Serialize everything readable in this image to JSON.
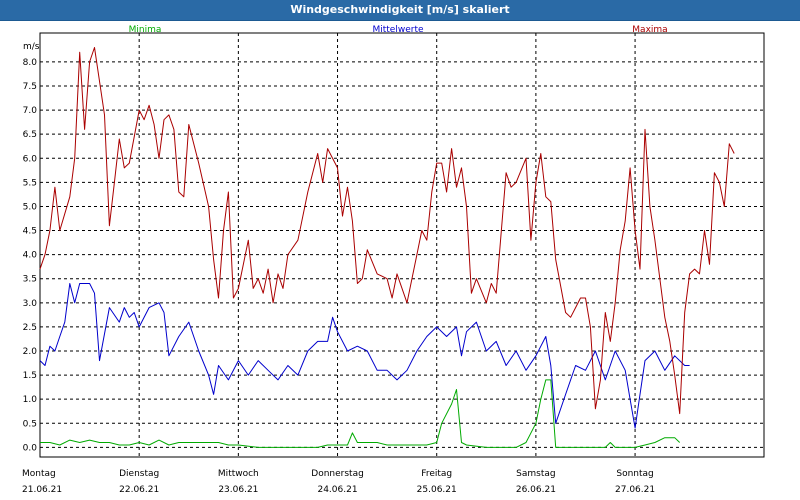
{
  "window": {
    "title": "Windgeschwindigkeit [m/s] skaliert"
  },
  "chart_data": {
    "type": "line",
    "title": "Windgeschwindigkeit [m/s] skaliert",
    "ylabel": "m/s",
    "ylim": [
      -0.2,
      8.6
    ],
    "xlim": [
      0,
      7.3
    ],
    "y_ticks": [
      "0.0",
      "0.5",
      "1.0",
      "1.5",
      "2.0",
      "2.5",
      "3.0",
      "3.5",
      "4.0",
      "4.5",
      "5.0",
      "5.5",
      "6.0",
      "6.5",
      "7.0",
      "7.5",
      "8.0"
    ],
    "x_ticks": [
      {
        "day": "Montag",
        "date": "21.06.21",
        "x": 0
      },
      {
        "day": "Dienstag",
        "date": "22.06.21",
        "x": 1
      },
      {
        "day": "Mittwoch",
        "date": "23.06.21",
        "x": 2
      },
      {
        "day": "Donnerstag",
        "date": "24.06.21",
        "x": 3
      },
      {
        "day": "Freitag",
        "date": "25.06.21",
        "x": 4
      },
      {
        "day": "Samstag",
        "date": "26.06.21",
        "x": 5
      },
      {
        "day": "Sonntag",
        "date": "27.06.21",
        "x": 6
      }
    ],
    "grid": true,
    "series": [
      {
        "name": "Minima",
        "color": "#00aa00",
        "points": [
          [
            0,
            0.1
          ],
          [
            0.1,
            0.1
          ],
          [
            0.2,
            0.05
          ],
          [
            0.3,
            0.15
          ],
          [
            0.4,
            0.1
          ],
          [
            0.5,
            0.15
          ],
          [
            0.6,
            0.1
          ],
          [
            0.7,
            0.1
          ],
          [
            0.8,
            0.05
          ],
          [
            0.9,
            0.05
          ],
          [
            1.0,
            0.1
          ],
          [
            1.1,
            0.05
          ],
          [
            1.2,
            0.15
          ],
          [
            1.3,
            0.05
          ],
          [
            1.4,
            0.1
          ],
          [
            1.6,
            0.1
          ],
          [
            1.8,
            0.1
          ],
          [
            1.9,
            0.05
          ],
          [
            2.0,
            0.05
          ],
          [
            2.2,
            0.0
          ],
          [
            2.5,
            0.0
          ],
          [
            2.8,
            0.0
          ],
          [
            2.9,
            0.05
          ],
          [
            3.1,
            0.05
          ],
          [
            3.15,
            0.3
          ],
          [
            3.2,
            0.1
          ],
          [
            3.4,
            0.1
          ],
          [
            3.5,
            0.05
          ],
          [
            3.9,
            0.05
          ],
          [
            4.0,
            0.1
          ],
          [
            4.05,
            0.5
          ],
          [
            4.15,
            0.9
          ],
          [
            4.2,
            1.2
          ],
          [
            4.25,
            0.1
          ],
          [
            4.3,
            0.05
          ],
          [
            4.5,
            0.0
          ],
          [
            4.8,
            0.0
          ],
          [
            4.9,
            0.1
          ],
          [
            5.0,
            0.5
          ],
          [
            5.05,
            1.0
          ],
          [
            5.1,
            1.4
          ],
          [
            5.15,
            1.4
          ],
          [
            5.2,
            0.0
          ],
          [
            5.5,
            0.0
          ],
          [
            5.7,
            0.0
          ],
          [
            5.75,
            0.1
          ],
          [
            5.8,
            0.0
          ],
          [
            6.0,
            0.0
          ],
          [
            6.1,
            0.05
          ],
          [
            6.2,
            0.1
          ],
          [
            6.3,
            0.2
          ],
          [
            6.4,
            0.2
          ],
          [
            6.45,
            0.1
          ]
        ]
      },
      {
        "name": "Mittelwerte",
        "color": "#0000cc",
        "points": [
          [
            0,
            1.8
          ],
          [
            0.05,
            1.7
          ],
          [
            0.1,
            2.1
          ],
          [
            0.15,
            2.0
          ],
          [
            0.2,
            2.3
          ],
          [
            0.25,
            2.6
          ],
          [
            0.3,
            3.4
          ],
          [
            0.35,
            3.0
          ],
          [
            0.4,
            3.4
          ],
          [
            0.5,
            3.4
          ],
          [
            0.55,
            3.2
          ],
          [
            0.6,
            1.8
          ],
          [
            0.7,
            2.9
          ],
          [
            0.8,
            2.6
          ],
          [
            0.85,
            2.9
          ],
          [
            0.9,
            2.7
          ],
          [
            0.95,
            2.8
          ],
          [
            1.0,
            2.5
          ],
          [
            1.1,
            2.9
          ],
          [
            1.2,
            3.0
          ],
          [
            1.25,
            2.8
          ],
          [
            1.3,
            1.9
          ],
          [
            1.4,
            2.3
          ],
          [
            1.5,
            2.6
          ],
          [
            1.6,
            2.0
          ],
          [
            1.7,
            1.5
          ],
          [
            1.75,
            1.1
          ],
          [
            1.8,
            1.7
          ],
          [
            1.9,
            1.4
          ],
          [
            2.0,
            1.8
          ],
          [
            2.1,
            1.5
          ],
          [
            2.2,
            1.8
          ],
          [
            2.3,
            1.6
          ],
          [
            2.4,
            1.4
          ],
          [
            2.5,
            1.7
          ],
          [
            2.6,
            1.5
          ],
          [
            2.7,
            2.0
          ],
          [
            2.8,
            2.2
          ],
          [
            2.9,
            2.2
          ],
          [
            2.95,
            2.7
          ],
          [
            3.0,
            2.4
          ],
          [
            3.1,
            2.0
          ],
          [
            3.2,
            2.1
          ],
          [
            3.3,
            2.0
          ],
          [
            3.4,
            1.6
          ],
          [
            3.5,
            1.6
          ],
          [
            3.6,
            1.4
          ],
          [
            3.7,
            1.6
          ],
          [
            3.8,
            2.0
          ],
          [
            3.9,
            2.3
          ],
          [
            4.0,
            2.5
          ],
          [
            4.1,
            2.3
          ],
          [
            4.2,
            2.5
          ],
          [
            4.25,
            1.9
          ],
          [
            4.3,
            2.4
          ],
          [
            4.4,
            2.6
          ],
          [
            4.5,
            2.0
          ],
          [
            4.6,
            2.2
          ],
          [
            4.7,
            1.7
          ],
          [
            4.8,
            2.0
          ],
          [
            4.9,
            1.6
          ],
          [
            5.0,
            1.9
          ],
          [
            5.1,
            2.3
          ],
          [
            5.15,
            1.7
          ],
          [
            5.2,
            0.5
          ],
          [
            5.3,
            1.1
          ],
          [
            5.4,
            1.7
          ],
          [
            5.5,
            1.6
          ],
          [
            5.6,
            2.0
          ],
          [
            5.7,
            1.4
          ],
          [
            5.8,
            2.0
          ],
          [
            5.9,
            1.6
          ],
          [
            5.95,
            1.0
          ],
          [
            6.0,
            0.4
          ],
          [
            6.05,
            1.1
          ],
          [
            6.1,
            1.8
          ],
          [
            6.2,
            2.0
          ],
          [
            6.3,
            1.6
          ],
          [
            6.4,
            1.9
          ],
          [
            6.5,
            1.7
          ],
          [
            6.55,
            1.7
          ]
        ]
      },
      {
        "name": "Maxima",
        "color": "#aa0000",
        "points": [
          [
            0,
            3.7
          ],
          [
            0.05,
            4.0
          ],
          [
            0.1,
            4.5
          ],
          [
            0.15,
            5.4
          ],
          [
            0.2,
            4.5
          ],
          [
            0.3,
            5.2
          ],
          [
            0.35,
            6.0
          ],
          [
            0.4,
            8.2
          ],
          [
            0.45,
            6.6
          ],
          [
            0.5,
            8.0
          ],
          [
            0.55,
            8.3
          ],
          [
            0.6,
            7.6
          ],
          [
            0.65,
            6.9
          ],
          [
            0.7,
            4.6
          ],
          [
            0.75,
            5.5
          ],
          [
            0.8,
            6.4
          ],
          [
            0.85,
            5.8
          ],
          [
            0.9,
            5.9
          ],
          [
            1.0,
            7.0
          ],
          [
            1.05,
            6.8
          ],
          [
            1.1,
            7.1
          ],
          [
            1.15,
            6.7
          ],
          [
            1.2,
            6.0
          ],
          [
            1.25,
            6.8
          ],
          [
            1.3,
            6.9
          ],
          [
            1.35,
            6.6
          ],
          [
            1.4,
            5.3
          ],
          [
            1.45,
            5.2
          ],
          [
            1.5,
            6.7
          ],
          [
            1.6,
            5.9
          ],
          [
            1.7,
            5.0
          ],
          [
            1.75,
            3.9
          ],
          [
            1.8,
            3.1
          ],
          [
            1.85,
            4.5
          ],
          [
            1.9,
            5.3
          ],
          [
            1.95,
            3.1
          ],
          [
            2.0,
            3.3
          ],
          [
            2.1,
            4.3
          ],
          [
            2.15,
            3.3
          ],
          [
            2.2,
            3.5
          ],
          [
            2.25,
            3.2
          ],
          [
            2.3,
            3.7
          ],
          [
            2.35,
            3.0
          ],
          [
            2.4,
            3.6
          ],
          [
            2.45,
            3.3
          ],
          [
            2.5,
            4.0
          ],
          [
            2.6,
            4.3
          ],
          [
            2.7,
            5.3
          ],
          [
            2.8,
            6.1
          ],
          [
            2.85,
            5.5
          ],
          [
            2.9,
            6.2
          ],
          [
            3.0,
            5.8
          ],
          [
            3.05,
            4.8
          ],
          [
            3.1,
            5.4
          ],
          [
            3.15,
            4.7
          ],
          [
            3.2,
            3.4
          ],
          [
            3.25,
            3.5
          ],
          [
            3.3,
            4.1
          ],
          [
            3.4,
            3.6
          ],
          [
            3.5,
            3.5
          ],
          [
            3.55,
            3.1
          ],
          [
            3.6,
            3.6
          ],
          [
            3.7,
            3.0
          ],
          [
            3.8,
            4.0
          ],
          [
            3.85,
            4.5
          ],
          [
            3.9,
            4.3
          ],
          [
            3.95,
            5.3
          ],
          [
            4.0,
            5.9
          ],
          [
            4.05,
            5.9
          ],
          [
            4.1,
            5.3
          ],
          [
            4.15,
            6.2
          ],
          [
            4.2,
            5.4
          ],
          [
            4.25,
            5.8
          ],
          [
            4.3,
            5.0
          ],
          [
            4.35,
            3.2
          ],
          [
            4.4,
            3.5
          ],
          [
            4.5,
            3.0
          ],
          [
            4.55,
            3.4
          ],
          [
            4.6,
            3.2
          ],
          [
            4.7,
            5.7
          ],
          [
            4.75,
            5.4
          ],
          [
            4.8,
            5.5
          ],
          [
            4.9,
            6.0
          ],
          [
            4.95,
            4.3
          ],
          [
            5.0,
            5.5
          ],
          [
            5.05,
            6.1
          ],
          [
            5.1,
            5.2
          ],
          [
            5.15,
            5.1
          ],
          [
            5.2,
            3.9
          ],
          [
            5.3,
            2.8
          ],
          [
            5.35,
            2.7
          ],
          [
            5.4,
            2.9
          ],
          [
            5.45,
            3.1
          ],
          [
            5.5,
            3.1
          ],
          [
            5.55,
            2.5
          ],
          [
            5.6,
            0.8
          ],
          [
            5.65,
            1.4
          ],
          [
            5.7,
            2.8
          ],
          [
            5.75,
            2.2
          ],
          [
            5.8,
            3.0
          ],
          [
            5.85,
            4.1
          ],
          [
            5.9,
            4.7
          ],
          [
            5.95,
            5.8
          ],
          [
            6.0,
            4.5
          ],
          [
            6.05,
            3.7
          ],
          [
            6.1,
            6.6
          ],
          [
            6.15,
            5.0
          ],
          [
            6.2,
            4.3
          ],
          [
            6.3,
            2.7
          ],
          [
            6.35,
            2.2
          ],
          [
            6.4,
            1.5
          ],
          [
            6.45,
            0.7
          ],
          [
            6.5,
            2.8
          ],
          [
            6.55,
            3.6
          ],
          [
            6.6,
            3.7
          ],
          [
            6.65,
            3.6
          ],
          [
            6.7,
            4.5
          ],
          [
            6.75,
            3.8
          ],
          [
            6.8,
            5.7
          ],
          [
            6.85,
            5.5
          ],
          [
            6.9,
            5.0
          ],
          [
            6.95,
            6.3
          ],
          [
            7.0,
            6.1
          ]
        ]
      }
    ]
  }
}
